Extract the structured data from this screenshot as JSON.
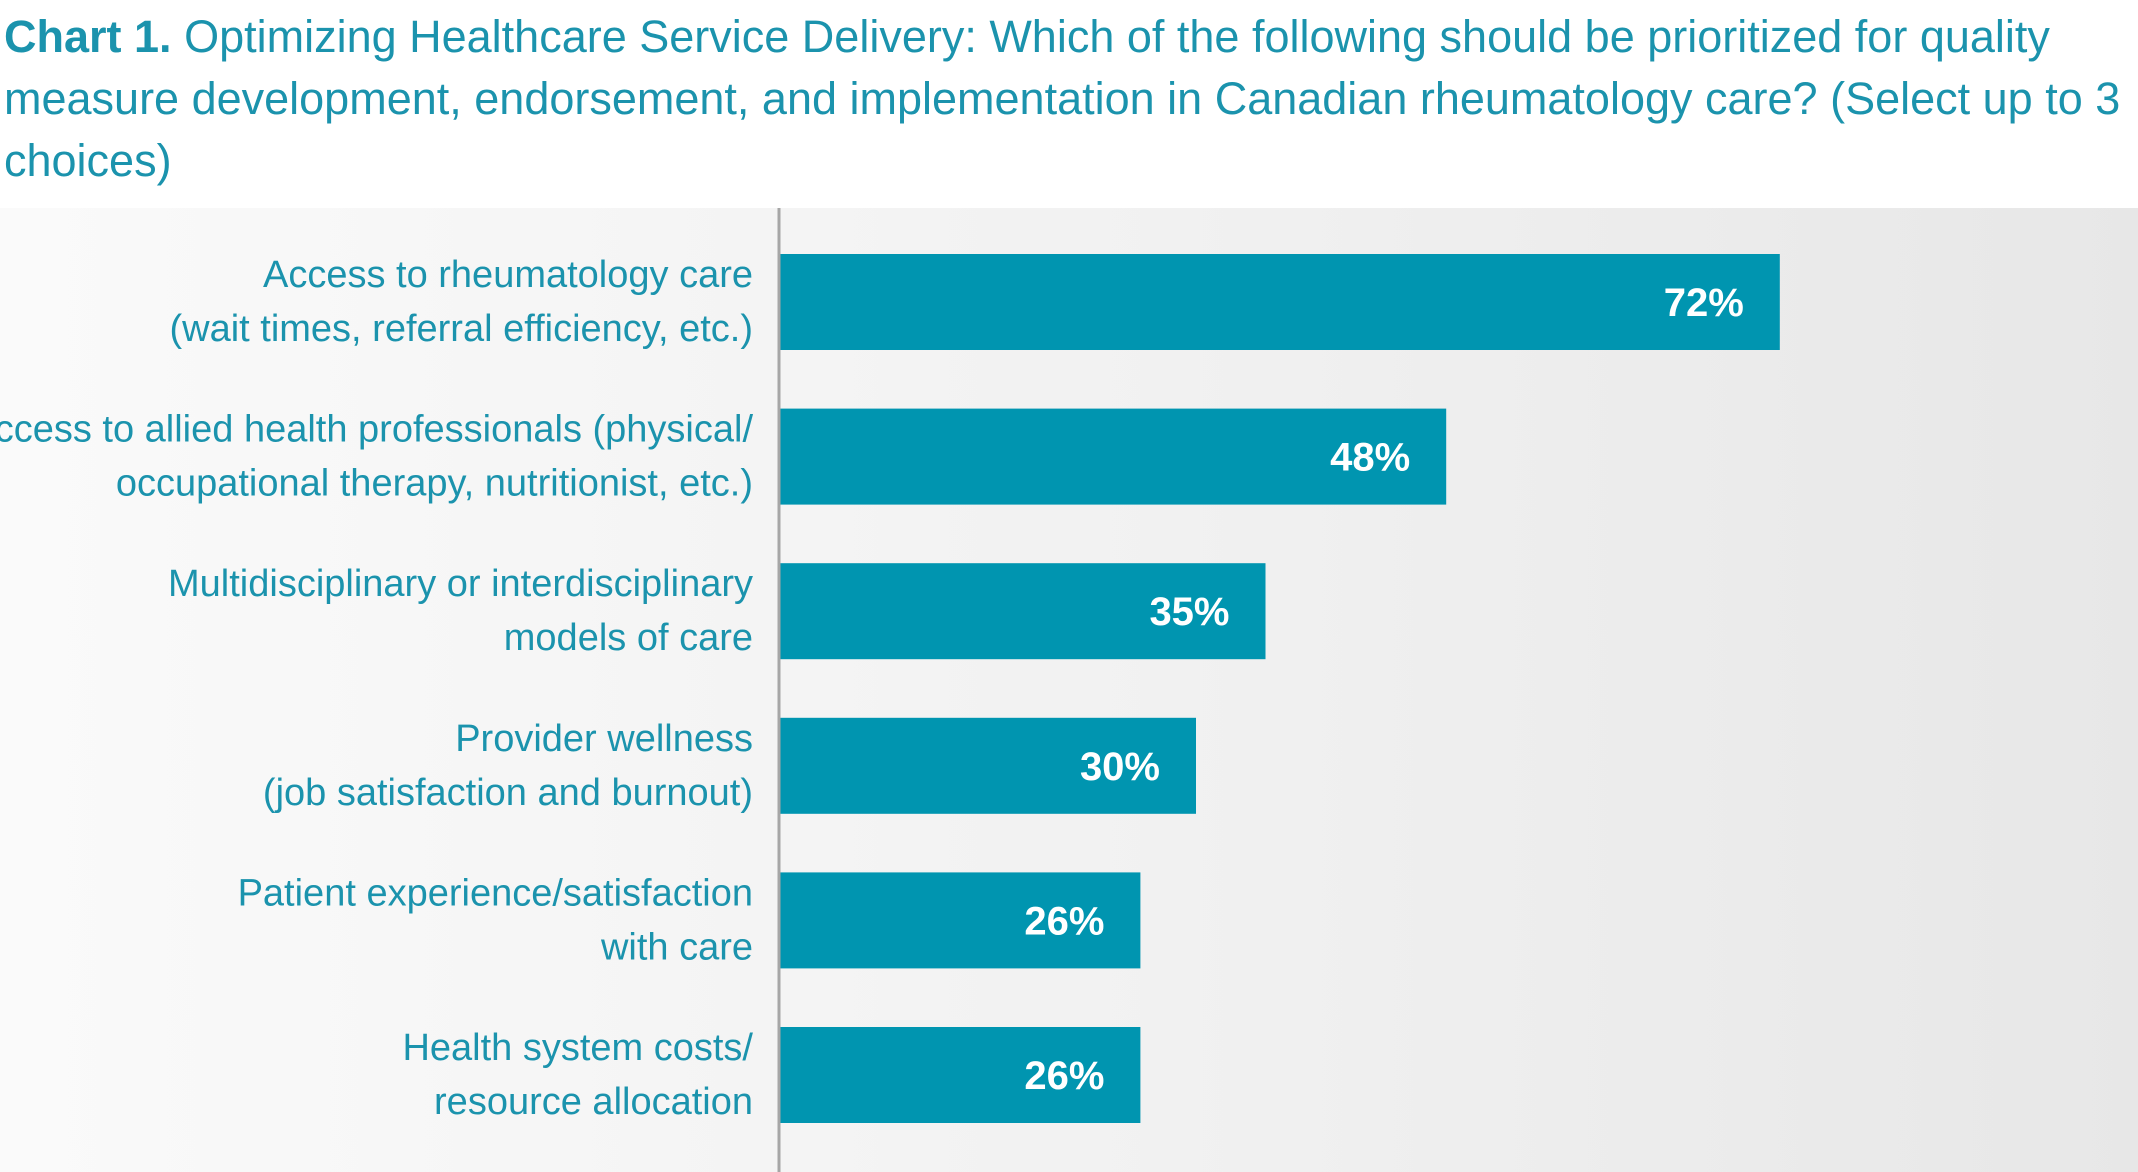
{
  "title": {
    "lead": "Chart 1.",
    "text": "Optimizing Healthcare Service Delivery: Which of the following should be prioritized for quality measure development, endorsement, and implementation in Canadian rheumatology care? (Select up to 3 choices)"
  },
  "colors": {
    "bar": "#0095b0",
    "text": "#1b93ad",
    "axis": "#a6a6a6",
    "background": "#ededed"
  },
  "chart_data": {
    "type": "bar",
    "orientation": "horizontal",
    "categories": [
      [
        "Access to rheumatology care",
        "(wait times, referral efficiency, etc.)"
      ],
      [
        "Access to allied health professionals (physical/",
        "occupational therapy, nutritionist, etc.)"
      ],
      [
        "Multidisciplinary or interdisciplinary",
        "models of care"
      ],
      [
        "Provider wellness",
        "(job satisfaction and burnout)"
      ],
      [
        "Patient experience/satisfaction",
        "with care"
      ],
      [
        "Health system costs/",
        "resource allocation"
      ]
    ],
    "values": [
      72,
      48,
      35,
      30,
      26,
      26
    ],
    "value_labels": [
      "72%",
      "48%",
      "35%",
      "30%",
      "26%",
      "26%"
    ],
    "xlim": [
      0,
      100
    ],
    "unit": "%",
    "grid": false,
    "legend": "none"
  }
}
